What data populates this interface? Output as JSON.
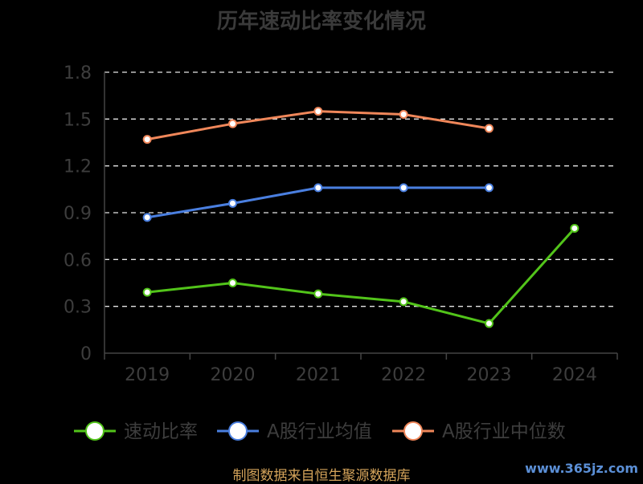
{
  "chart_data": {
    "type": "line",
    "title": "历年速动比率变化情况",
    "categories": [
      "2019",
      "2020",
      "2021",
      "2022",
      "2023",
      "2024"
    ],
    "y_ticks": [
      "0",
      "0.3",
      "0.6",
      "0.9",
      "1.2",
      "1.5",
      "1.8"
    ],
    "ylim": [
      0,
      1.8
    ],
    "grid": true,
    "legend_position": "bottom",
    "series": [
      {
        "name": "速动比率",
        "color": "#52c41a",
        "values": [
          0.39,
          0.45,
          0.38,
          0.33,
          0.19,
          0.8
        ]
      },
      {
        "name": "A股行业均值",
        "color": "#4a7fe0",
        "values": [
          0.87,
          0.96,
          1.06,
          1.06,
          1.06,
          null
        ]
      },
      {
        "name": "A股行业中位数",
        "color": "#f0875a",
        "values": [
          1.37,
          1.47,
          1.55,
          1.53,
          1.44,
          null
        ]
      }
    ]
  },
  "footer": {
    "source": "制图数据来自恒生聚源数据库",
    "watermark": "www.365jz.com"
  }
}
